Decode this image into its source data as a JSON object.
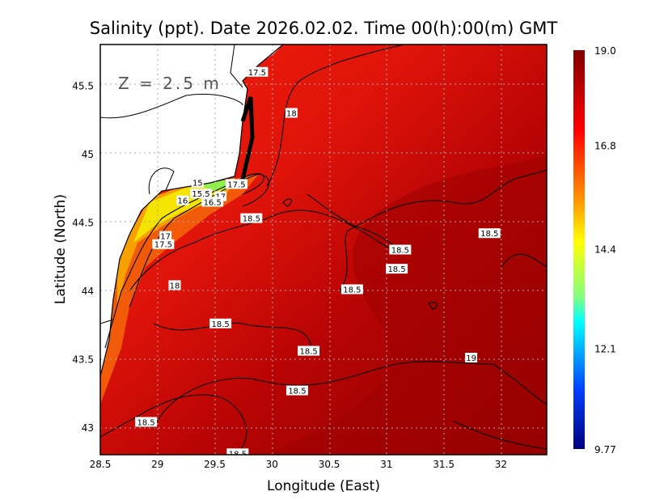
{
  "chart_data": {
    "type": "heatmap",
    "title": "Salinity (ppt). Date 2026.02.02. Time 00(h):00(m) GMT",
    "xlabel": "Longitude (East)",
    "ylabel": "Latitude (North)",
    "annotation": "Z = 2.5 m",
    "xlim": [
      28.5,
      32.4
    ],
    "ylim": [
      42.8,
      45.8
    ],
    "xticks": [
      "28.5",
      "29",
      "29.5",
      "30",
      "30.5",
      "31",
      "31.5",
      "32"
    ],
    "yticks": [
      "43",
      "43.5",
      "44",
      "44.5",
      "45",
      "45.5"
    ],
    "grid": true,
    "colorbar": {
      "min": 9.77,
      "max": 19.0,
      "tick_labels": [
        "19.0",
        "16.8",
        "14.4",
        "12.1",
        "9.77"
      ],
      "colormap": "jet"
    },
    "contour_labels": [
      {
        "text": "17.5",
        "lon": 29.87,
        "lat": 45.6
      },
      {
        "text": "18",
        "lon": 30.17,
        "lat": 45.3
      },
      {
        "text": "15",
        "lon": 29.35,
        "lat": 44.79
      },
      {
        "text": "17.5",
        "lon": 29.69,
        "lat": 44.78
      },
      {
        "text": "15.5",
        "lon": 29.38,
        "lat": 44.71
      },
      {
        "text": "17",
        "lon": 29.55,
        "lat": 44.69
      },
      {
        "text": "16",
        "lon": 29.22,
        "lat": 44.66
      },
      {
        "text": "16.5",
        "lon": 29.48,
        "lat": 44.65
      },
      {
        "text": "18.5",
        "lon": 29.82,
        "lat": 44.53
      },
      {
        "text": "17",
        "lon": 29.07,
        "lat": 44.4
      },
      {
        "text": "17.5",
        "lon": 29.05,
        "lat": 44.34
      },
      {
        "text": "18",
        "lon": 29.15,
        "lat": 44.04
      },
      {
        "text": "18.5",
        "lon": 31.12,
        "lat": 44.3
      },
      {
        "text": "18.5",
        "lon": 31.09,
        "lat": 44.16
      },
      {
        "text": "18.5",
        "lon": 31.9,
        "lat": 44.42
      },
      {
        "text": "18.5",
        "lon": 30.7,
        "lat": 44.01
      },
      {
        "text": "18.5",
        "lon": 29.55,
        "lat": 43.76
      },
      {
        "text": "18.5",
        "lon": 30.32,
        "lat": 43.56
      },
      {
        "text": "19",
        "lon": 31.74,
        "lat": 43.51
      },
      {
        "text": "18.5",
        "lon": 30.22,
        "lat": 43.27
      },
      {
        "text": "18.5",
        "lon": 28.9,
        "lat": 43.04
      },
      {
        "text": "18.5",
        "lon": 29.7,
        "lat": 42.81
      }
    ],
    "colors": {
      "sea_high": "#8b0000",
      "sea_mid": "#e81808",
      "coast_low": "#f5e400",
      "land": "#ffffff"
    }
  }
}
